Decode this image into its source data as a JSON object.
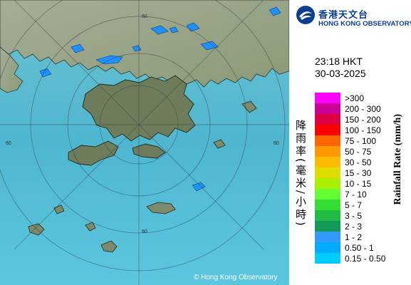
{
  "map": {
    "copyright": "© Hong Kong Observatory",
    "ring_label": "60"
  },
  "logo": {
    "chinese_name": "香港天文台",
    "english_name": "HONG KONG OBSERVATORY"
  },
  "timestamp": {
    "time": "23:18 HKT",
    "date": "30-03-2025"
  },
  "legend": {
    "chinese_title": "降雨率(毫米/小時)",
    "english_title": "Rainfall Rate (mm/h)",
    "items": [
      {
        "label": ">300",
        "color": "#ff00ff"
      },
      {
        "label": "200 - 300",
        "color": "#cc0099"
      },
      {
        "label": "150 - 200",
        "color": "#dd0044"
      },
      {
        "label": "100 - 150",
        "color": "#ff0000"
      },
      {
        "label": "75 - 100",
        "color": "#ff6600"
      },
      {
        "label": "50 - 75",
        "color": "#ff9900"
      },
      {
        "label": "30 - 50",
        "color": "#ffbb00"
      },
      {
        "label": "15 - 30",
        "color": "#dddd00"
      },
      {
        "label": "10 - 15",
        "color": "#aaee00"
      },
      {
        "label": "7 - 10",
        "color": "#66ff33"
      },
      {
        "label": "5 - 7",
        "color": "#33dd33"
      },
      {
        "label": "3 - 5",
        "color": "#22bb44"
      },
      {
        "label": "2 - 3",
        "color": "#119955"
      },
      {
        "label": "1 - 2",
        "color": "#3399ff"
      },
      {
        "label": "0.50 - 1",
        "color": "#00aaff"
      },
      {
        "label": "0.15 - 0.50",
        "color": "#00ccff"
      }
    ]
  },
  "colors": {
    "sea": "#4fb8cf",
    "land": "#7a8a6a",
    "rain_light": "#00aaff",
    "logo_blue": "#0b3d91"
  }
}
